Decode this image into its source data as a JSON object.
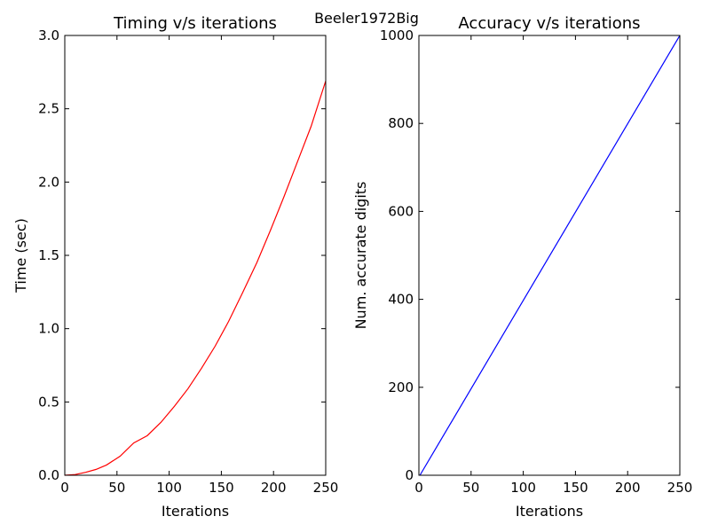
{
  "suptitle": "Beeler1972Big",
  "chart_data": [
    {
      "type": "line",
      "title": "Timing v/s iterations",
      "xlabel": "Iterations",
      "ylabel": "Time (sec)",
      "xlim": [
        0,
        250
      ],
      "ylim": [
        0,
        3.0
      ],
      "xticks": [
        "0",
        "50",
        "100",
        "150",
        "200",
        "250"
      ],
      "yticks": [
        "0.0",
        "0.5",
        "1.0",
        "1.5",
        "2.0",
        "2.5",
        "3.0"
      ],
      "grid": false,
      "series": [
        {
          "color": "#ff0000",
          "x": [
            0,
            10,
            20,
            30,
            40,
            53,
            66,
            79,
            92,
            105,
            118,
            131,
            144,
            157,
            170,
            184,
            197,
            210,
            223,
            236,
            250
          ],
          "y": [
            0.0,
            0.005,
            0.02,
            0.04,
            0.07,
            0.13,
            0.22,
            0.27,
            0.36,
            0.47,
            0.59,
            0.73,
            0.88,
            1.05,
            1.24,
            1.45,
            1.67,
            1.9,
            2.14,
            2.38,
            2.69
          ]
        }
      ]
    },
    {
      "type": "line",
      "title": "Accuracy v/s iterations",
      "xlabel": "Iterations",
      "ylabel": "Num. accurate digits",
      "xlim": [
        0,
        250
      ],
      "ylim": [
        0,
        1000
      ],
      "xticks": [
        "0",
        "50",
        "100",
        "150",
        "200",
        "250"
      ],
      "yticks": [
        "0",
        "200",
        "400",
        "600",
        "800",
        "1000"
      ],
      "grid": false,
      "series": [
        {
          "color": "#0000ff",
          "x": [
            1,
            250
          ],
          "y": [
            0,
            1000
          ]
        }
      ]
    }
  ]
}
